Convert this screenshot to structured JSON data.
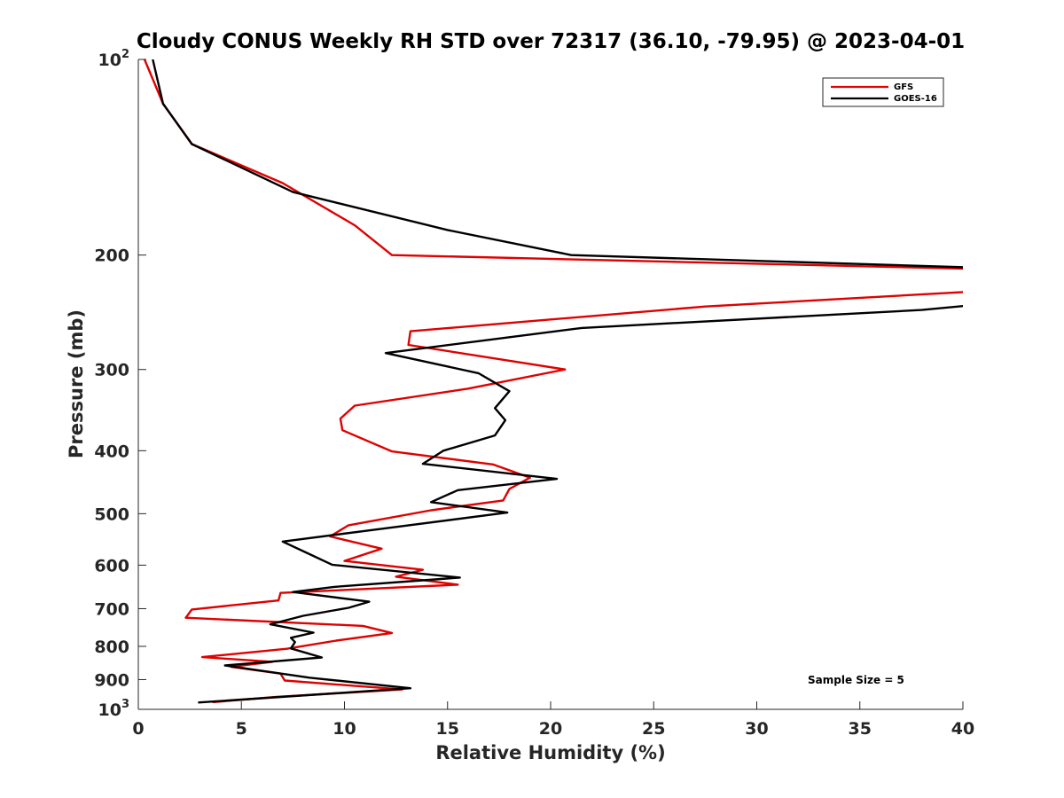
{
  "chart_data": {
    "type": "line",
    "title": "Cloudy CONUS Weekly RH STD over 72317 (36.10, -79.95) @ 2023-04-01",
    "xlabel": "Relative Humidity (%)",
    "ylabel": "Pressure (mb)",
    "xlim": [
      0,
      40
    ],
    "ylim": [
      100,
      1000
    ],
    "y_scale": "log",
    "y_reversed": true,
    "x_ticks": [
      "0",
      "5",
      "10",
      "15",
      "20",
      "25",
      "30",
      "35",
      "40"
    ],
    "y_ticks": [
      {
        "value": 100,
        "base": "10",
        "exp": "2"
      },
      {
        "value": 200,
        "base": "200",
        "exp": ""
      },
      {
        "value": 300,
        "base": "300",
        "exp": ""
      },
      {
        "value": 400,
        "base": "400",
        "exp": ""
      },
      {
        "value": 500,
        "base": "500",
        "exp": ""
      },
      {
        "value": 600,
        "base": "600",
        "exp": ""
      },
      {
        "value": 700,
        "base": "700",
        "exp": ""
      },
      {
        "value": 800,
        "base": "800",
        "exp": ""
      },
      {
        "value": 900,
        "base": "900",
        "exp": ""
      },
      {
        "value": 1000,
        "base": "10",
        "exp": "3"
      }
    ],
    "grid": false,
    "legend_position": "top-right",
    "annotation": "Sample Size = 5",
    "series": [
      {
        "name": "GFS",
        "color": "#e00000",
        "points": [
          [
            0.3,
            100
          ],
          [
            1.2,
            117
          ],
          [
            2.6,
            135
          ],
          [
            7.0,
            155
          ],
          [
            10.5,
            180
          ],
          [
            12.3,
            200
          ],
          [
            40.5,
            210
          ],
          [
            41,
            215
          ],
          [
            40,
            228
          ],
          [
            27.5,
            240
          ],
          [
            13.2,
            262
          ],
          [
            13.1,
            275
          ],
          [
            20.7,
            300
          ],
          [
            16.0,
            321
          ],
          [
            10.5,
            341
          ],
          [
            9.8,
            357
          ],
          [
            9.9,
            372
          ],
          [
            12.3,
            401
          ],
          [
            17.2,
            420
          ],
          [
            19.0,
            440
          ],
          [
            18.0,
            458
          ],
          [
            17.7,
            477
          ],
          [
            14.2,
            494
          ],
          [
            10.2,
            521
          ],
          [
            9.3,
            542
          ],
          [
            11.8,
            566
          ],
          [
            10.0,
            591
          ],
          [
            13.8,
            610
          ],
          [
            12.5,
            625
          ],
          [
            15.5,
            643
          ],
          [
            6.9,
            662
          ],
          [
            6.8,
            680
          ],
          [
            2.6,
            702
          ],
          [
            2.3,
            723
          ],
          [
            10.9,
            744
          ],
          [
            12.3,
            763
          ],
          [
            9.6,
            784
          ],
          [
            7.2,
            807
          ],
          [
            3.1,
            831
          ],
          [
            6.5,
            845
          ],
          [
            4.5,
            860
          ],
          [
            6.9,
            881
          ],
          [
            7.1,
            903
          ],
          [
            12.8,
            932
          ],
          [
            6.7,
            957
          ],
          [
            3.6,
            975
          ]
        ]
      },
      {
        "name": "GOES-16",
        "color": "#000000",
        "points": [
          [
            0.7,
            100
          ],
          [
            1.2,
            117
          ],
          [
            2.6,
            135
          ],
          [
            7.5,
            160
          ],
          [
            15.0,
            183
          ],
          [
            21.0,
            200
          ],
          [
            40.5,
            209
          ],
          [
            41,
            212
          ],
          [
            41,
            238
          ],
          [
            38.0,
            243
          ],
          [
            21.5,
            259
          ],
          [
            12.0,
            283
          ],
          [
            16.5,
            304
          ],
          [
            18.0,
            324
          ],
          [
            17.3,
            344
          ],
          [
            17.8,
            359
          ],
          [
            17.3,
            379
          ],
          [
            14.8,
            400
          ],
          [
            13.8,
            419
          ],
          [
            20.3,
            442
          ],
          [
            15.5,
            460
          ],
          [
            14.2,
            480
          ],
          [
            17.9,
            498
          ],
          [
            12.5,
            524
          ],
          [
            7.0,
            552
          ],
          [
            8.4,
            579
          ],
          [
            9.4,
            599
          ],
          [
            15.6,
            627
          ],
          [
            9.5,
            648
          ],
          [
            7.5,
            660
          ],
          [
            11.2,
            683
          ],
          [
            10.2,
            698
          ],
          [
            8.0,
            718
          ],
          [
            6.4,
            740
          ],
          [
            8.5,
            762
          ],
          [
            7.4,
            776
          ],
          [
            7.6,
            788
          ],
          [
            7.4,
            806
          ],
          [
            8.9,
            832
          ],
          [
            4.2,
            856
          ],
          [
            8.3,
            894
          ],
          [
            13.2,
            928
          ],
          [
            2.9,
            976
          ]
        ]
      }
    ]
  }
}
